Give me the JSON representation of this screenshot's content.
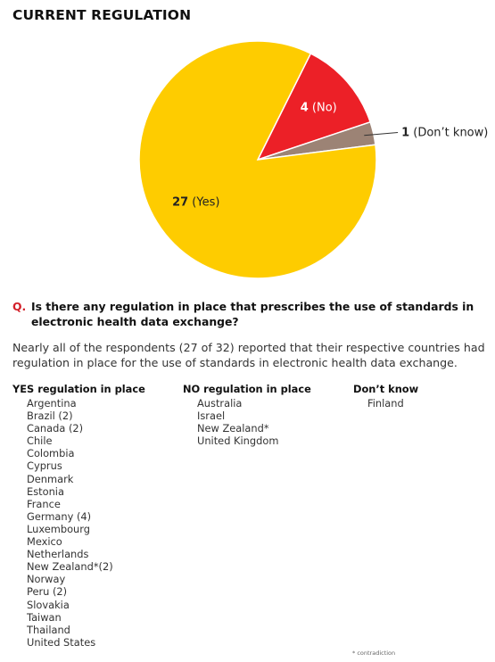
{
  "title": "CURRENT REGULATION",
  "chart_data": {
    "type": "pie",
    "slices": [
      {
        "value": 27,
        "number": "27",
        "label": "(Yes)",
        "color": "#fecc00",
        "label_color": "#222222"
      },
      {
        "value": 4,
        "number": "4",
        "label": "(No)",
        "color": "#ec2027",
        "label_color": "#ffffff"
      },
      {
        "value": 1,
        "number": "1",
        "label": "(Don’t know)",
        "color": "#9c8375",
        "label_color": "#222222"
      }
    ]
  },
  "question": {
    "marker": "Q.",
    "text": "Is there any regulation in place that prescribes the use of standards in electronic health data exchange?"
  },
  "intro": "Nearly all of the respondents (27 of 32) reported that their respective countries had regulation in place for the use of standards in electronic health data exchange.",
  "lists": {
    "yes": {
      "heading": "YES regulation in place",
      "items": [
        "Argentina",
        "Brazil (2)",
        "Canada (2)",
        "Chile",
        "Colombia",
        "Cyprus",
        "Denmark",
        "Estonia",
        "France",
        "Germany (4)",
        "Luxembourg",
        "Mexico",
        "Netherlands",
        "New Zealand*(2)",
        "Norway",
        "Peru (2)",
        "Slovakia",
        "Taiwan",
        "Thailand",
        "United States"
      ]
    },
    "no": {
      "heading": "NO regulation in place",
      "items": [
        "Australia",
        "Israel",
        "New Zealand*",
        "United Kingdom"
      ]
    },
    "dont_know": {
      "heading": "Don’t know",
      "items": [
        "Finland"
      ]
    }
  },
  "footnote": "* contradiction"
}
